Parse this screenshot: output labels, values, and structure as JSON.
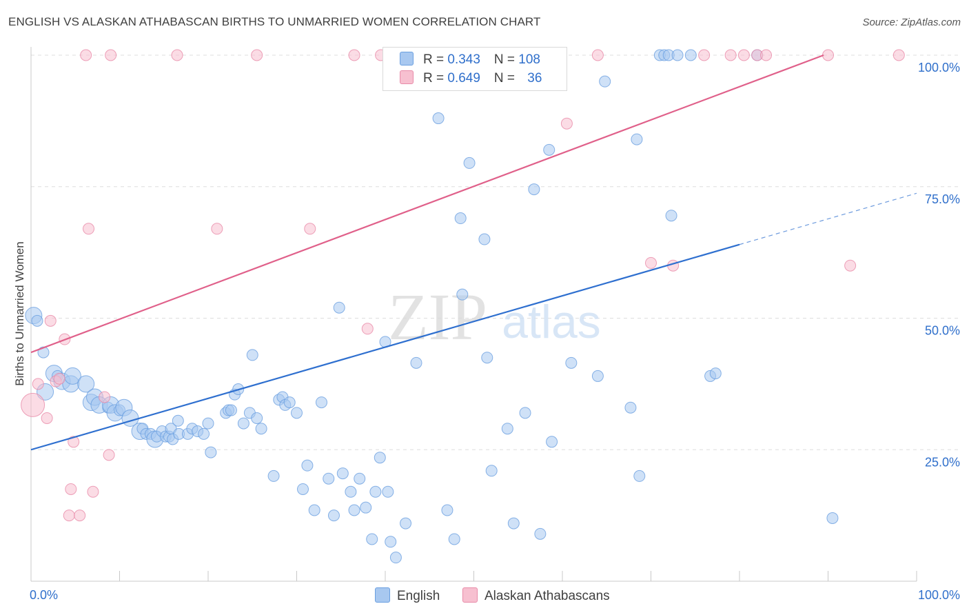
{
  "header": {
    "title": "ENGLISH VS ALASKAN ATHABASCAN BIRTHS TO UNMARRIED WOMEN CORRELATION CHART",
    "source": "Source: ZipAtlas.com"
  },
  "watermark": {
    "zip": "ZIP",
    "atlas": "atlas"
  },
  "legend_top": {
    "rows": [
      {
        "r_label": "R = ",
        "r_value": "0.343",
        "n_label": "N = ",
        "n_value": "108"
      },
      {
        "r_label": "R = ",
        "r_value": "0.649",
        "n_label": "N = ",
        "n_value": "36"
      }
    ]
  },
  "legend_bottom": {
    "english": "English",
    "alaskan": "Alaskan Athabascans"
  },
  "colors": {
    "english_fill": "#a8c8f0",
    "english_stroke": "#6a9fe0",
    "english_line": "#2e6fcf",
    "alaskan_fill": "#f7c0d0",
    "alaskan_stroke": "#e88aa8",
    "alaskan_line": "#e0608a",
    "value_text": "#2f6fcb",
    "grid": "#dddddd"
  },
  "chart_data": {
    "type": "scatter",
    "title": "ENGLISH VS ALASKAN ATHABASCAN BIRTHS TO UNMARRIED WOMEN CORRELATION CHART",
    "xlabel": "",
    "ylabel": "Births to Unmarried Women",
    "xlim": [
      0,
      100
    ],
    "ylim": [
      0,
      100
    ],
    "x_tick_labels": [
      "0.0%",
      "100.0%"
    ],
    "y_tick_labels": [
      "25.0%",
      "50.0%",
      "75.0%",
      "100.0%"
    ],
    "y_ticks": [
      25,
      50,
      75,
      100
    ],
    "grid": true,
    "legend_position": "bottom",
    "series": [
      {
        "name": "English",
        "points": [
          [
            0.3,
            50.5,
            3
          ],
          [
            0.7,
            49.5,
            2
          ],
          [
            1.4,
            43.5,
            2
          ],
          [
            1.6,
            36,
            3
          ],
          [
            2.6,
            39.5,
            3
          ],
          [
            3,
            39,
            2
          ],
          [
            3.5,
            38,
            3
          ],
          [
            4.5,
            37.5,
            3
          ],
          [
            4.7,
            39,
            3
          ],
          [
            6.2,
            37.5,
            3
          ],
          [
            6.8,
            34,
            3
          ],
          [
            7.2,
            35,
            3
          ],
          [
            7.7,
            33.5,
            3
          ],
          [
            8.7,
            33,
            2
          ],
          [
            9,
            33.5,
            3
          ],
          [
            9.5,
            32,
            3
          ],
          [
            10,
            32.5,
            2
          ],
          [
            10.5,
            33,
            3
          ],
          [
            11.2,
            31,
            3
          ],
          [
            12.3,
            28.5,
            3
          ],
          [
            12.6,
            29,
            2
          ],
          [
            13,
            28,
            2
          ],
          [
            13.5,
            28,
            2
          ],
          [
            14,
            27,
            3
          ],
          [
            14.2,
            27.5,
            2
          ],
          [
            14.8,
            28.5,
            2
          ],
          [
            15.2,
            27.5,
            2
          ],
          [
            15.6,
            27.5,
            2
          ],
          [
            15.8,
            29,
            2
          ],
          [
            16,
            27,
            2
          ],
          [
            16.6,
            30.5,
            2
          ],
          [
            16.7,
            28,
            2
          ],
          [
            17.7,
            28,
            2
          ],
          [
            18.2,
            29,
            2
          ],
          [
            18.8,
            28.5,
            2
          ],
          [
            19.5,
            28,
            2
          ],
          [
            20,
            30,
            2
          ],
          [
            20.3,
            24.5,
            2
          ],
          [
            22,
            32,
            2
          ],
          [
            22.3,
            32.5,
            2
          ],
          [
            22.6,
            32.5,
            2
          ],
          [
            23,
            35.5,
            2
          ],
          [
            23.4,
            36.5,
            2
          ],
          [
            24,
            30,
            2
          ],
          [
            24.7,
            32,
            2
          ],
          [
            25,
            43,
            2
          ],
          [
            25.5,
            31,
            2
          ],
          [
            26,
            29,
            2
          ],
          [
            27.4,
            20,
            2
          ],
          [
            28,
            34.5,
            2
          ],
          [
            28.4,
            35,
            2
          ],
          [
            28.7,
            33.5,
            2
          ],
          [
            29.2,
            34,
            2
          ],
          [
            30,
            32,
            2
          ],
          [
            30.7,
            17.5,
            2
          ],
          [
            31.2,
            22,
            2
          ],
          [
            32,
            13.5,
            2
          ],
          [
            32.8,
            34,
            2
          ],
          [
            33.6,
            19.5,
            2
          ],
          [
            34.2,
            12.5,
            2
          ],
          [
            34.8,
            52,
            2
          ],
          [
            35.2,
            20.5,
            2
          ],
          [
            36.1,
            17,
            2
          ],
          [
            36.5,
            13.5,
            2
          ],
          [
            37.1,
            19.5,
            2
          ],
          [
            37.8,
            14,
            2
          ],
          [
            38.5,
            8,
            2
          ],
          [
            38.9,
            17,
            2
          ],
          [
            39.4,
            23.5,
            2
          ],
          [
            40,
            45.5,
            2
          ],
          [
            40.3,
            17,
            2
          ],
          [
            40.6,
            7.5,
            2
          ],
          [
            41.2,
            4.5,
            2
          ],
          [
            42.3,
            11,
            2
          ],
          [
            43.5,
            41.5,
            2
          ],
          [
            46,
            88,
            2
          ],
          [
            47,
            13.5,
            2
          ],
          [
            47.8,
            8,
            2
          ],
          [
            48.5,
            69,
            2
          ],
          [
            48.7,
            54.5,
            2
          ],
          [
            49.5,
            79.5,
            2
          ],
          [
            51.2,
            65,
            2
          ],
          [
            51.5,
            42.5,
            2
          ],
          [
            52,
            21,
            2
          ],
          [
            53.8,
            29,
            2
          ],
          [
            54.5,
            11,
            2
          ],
          [
            55.8,
            32,
            2
          ],
          [
            56.8,
            74.5,
            2
          ],
          [
            57.5,
            9,
            2
          ],
          [
            58.5,
            82,
            2
          ],
          [
            58.8,
            26.5,
            2
          ],
          [
            61,
            41.5,
            2
          ],
          [
            64,
            39,
            2
          ],
          [
            64.8,
            95,
            2
          ],
          [
            67.7,
            33,
            2
          ],
          [
            68.4,
            84,
            2
          ],
          [
            68.7,
            20,
            2
          ],
          [
            72.3,
            69.5,
            2
          ],
          [
            76.7,
            39,
            2
          ],
          [
            77.3,
            39.5,
            2
          ],
          [
            90.5,
            12,
            2
          ],
          [
            59.5,
            100,
            2
          ],
          [
            71,
            100,
            2
          ],
          [
            71.5,
            100,
            2
          ],
          [
            72,
            100,
            2
          ],
          [
            73,
            100,
            2
          ],
          [
            74.5,
            100,
            2
          ],
          [
            82,
            100,
            2
          ]
        ]
      },
      {
        "name": "Alaskan Athabascans",
        "points": [
          [
            0.2,
            33.5,
            4
          ],
          [
            0.8,
            37.5,
            2
          ],
          [
            2.2,
            49.5,
            2
          ],
          [
            1.8,
            31,
            2
          ],
          [
            2.8,
            38,
            2
          ],
          [
            3.2,
            38.5,
            2
          ],
          [
            3.8,
            46,
            2
          ],
          [
            4.3,
            12.5,
            2
          ],
          [
            4.5,
            17.5,
            2
          ],
          [
            4.8,
            26.5,
            2
          ],
          [
            5.5,
            12.5,
            2
          ],
          [
            6.2,
            100,
            2
          ],
          [
            6.5,
            67,
            2
          ],
          [
            7,
            17,
            2
          ],
          [
            8.3,
            35,
            2
          ],
          [
            8.8,
            24,
            2
          ],
          [
            9,
            100,
            2
          ],
          [
            16.5,
            100,
            2
          ],
          [
            21,
            67,
            2
          ],
          [
            25.5,
            100,
            2
          ],
          [
            31.5,
            67,
            2
          ],
          [
            36.5,
            100,
            2
          ],
          [
            38,
            48,
            2
          ],
          [
            39.5,
            100,
            2
          ],
          [
            60.5,
            87,
            2
          ],
          [
            64,
            100,
            2
          ],
          [
            70,
            60.5,
            2
          ],
          [
            72.5,
            60,
            2
          ],
          [
            76,
            100,
            2
          ],
          [
            79,
            100,
            2
          ],
          [
            80.5,
            100,
            2
          ],
          [
            82,
            100,
            2
          ],
          [
            83,
            100,
            2
          ],
          [
            90,
            100,
            2
          ],
          [
            92.5,
            60,
            2
          ],
          [
            98,
            100,
            2
          ]
        ]
      }
    ],
    "trend_lines": [
      {
        "series": "English",
        "x": [
          0,
          80
        ],
        "y": [
          25,
          64
        ],
        "dashed_extension_to_x": 100
      },
      {
        "series": "Alaskan Athabascans",
        "x": [
          0,
          89.5
        ],
        "y": [
          43.5,
          100
        ]
      }
    ],
    "stats": [
      {
        "series": "English",
        "R": 0.343,
        "N": 108
      },
      {
        "series": "Alaskan Athabascans",
        "R": 0.649,
        "N": 36
      }
    ]
  }
}
